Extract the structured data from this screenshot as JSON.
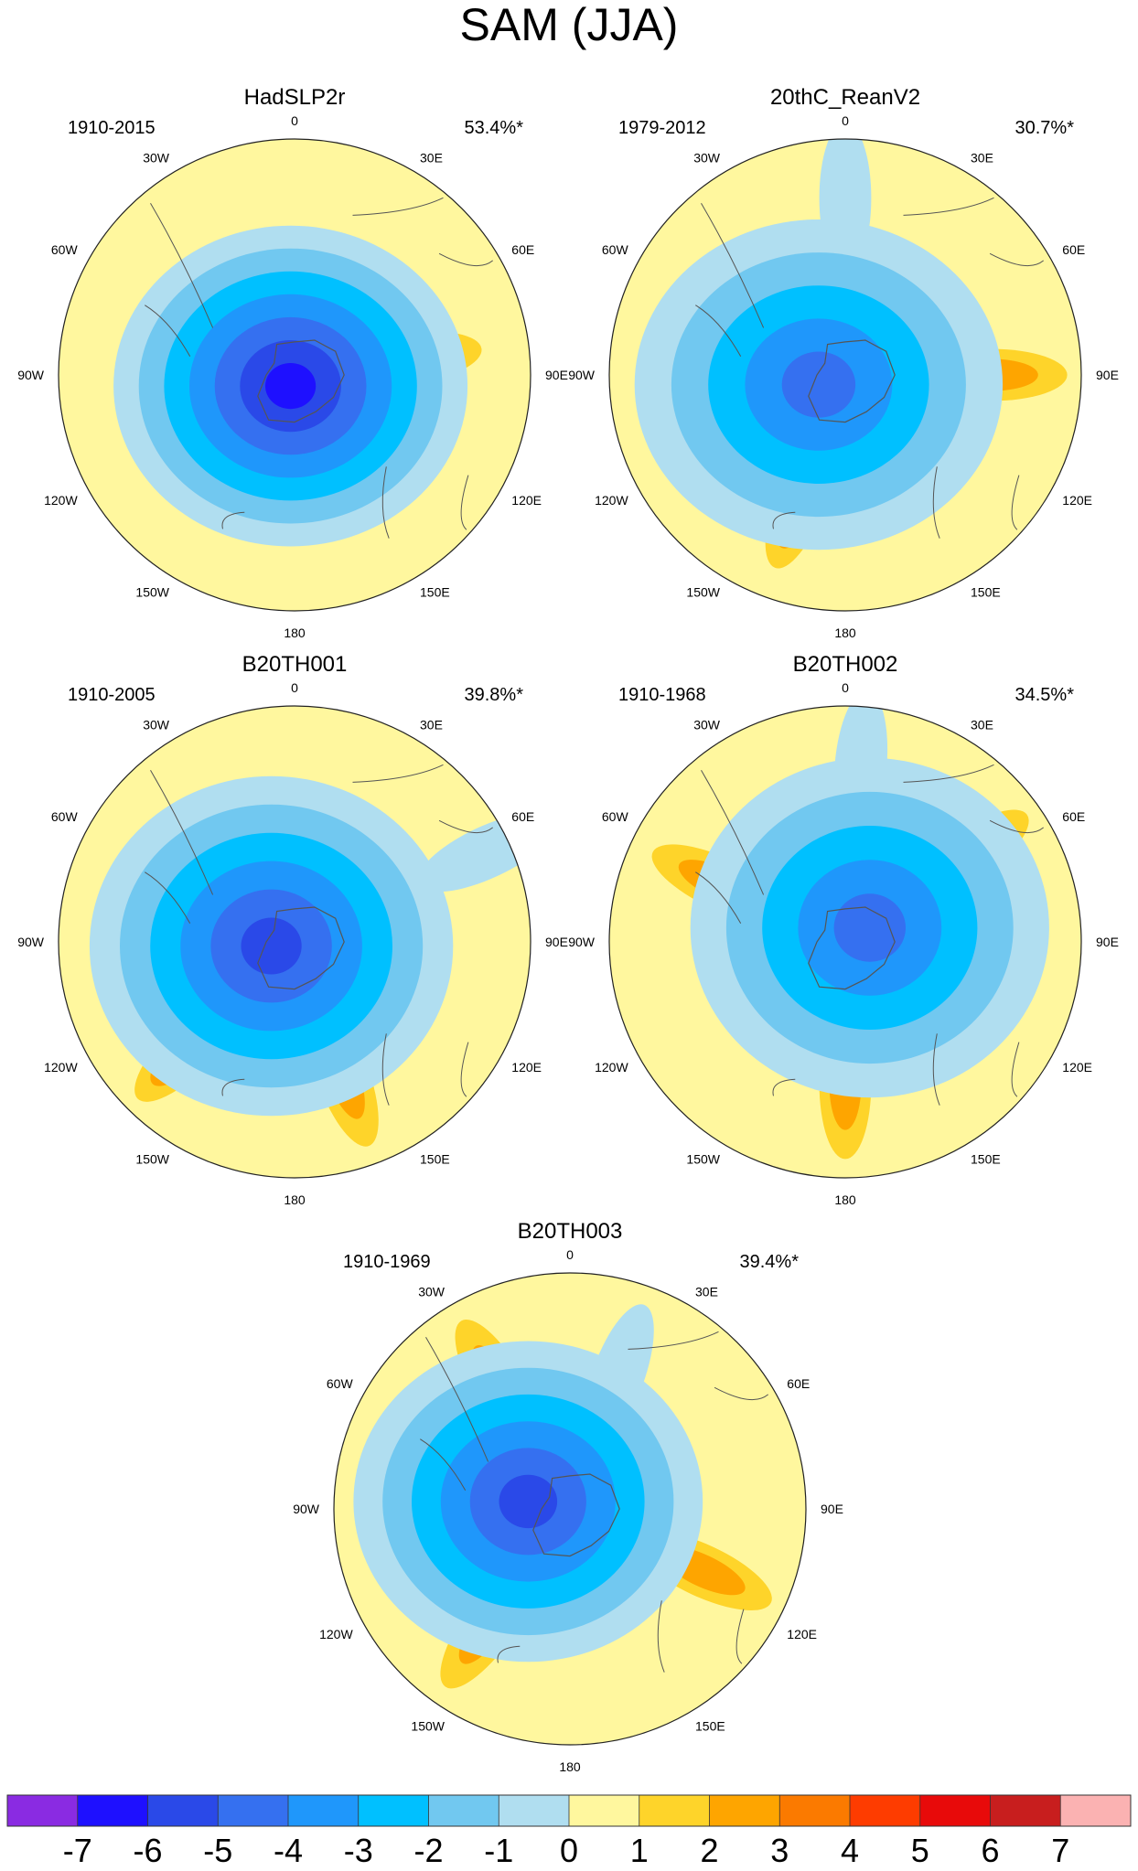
{
  "chart_data": {
    "type": "heatmap",
    "title": "SAM (JJA)",
    "projection": "south-polar-stereographic",
    "longitude_labels": {
      "lon_0": "0",
      "lon_30e": "30E",
      "lon_60e": "60E",
      "lon_90e": "90E",
      "lon_120e": "120E",
      "lon_150e": "150E",
      "lon_180": "180",
      "lon_150w": "150W",
      "lon_120w": "120W",
      "lon_90w": "90W",
      "lon_60w": "60W",
      "lon_30w": "30W"
    },
    "panels": [
      {
        "name": "HadSLP2r",
        "years": "1910-2015",
        "variance": "53.4%*",
        "min_value": -6,
        "min_bearing_deg": 200,
        "min_radius_frac": 0.05,
        "spread": [
          0.25,
          0.2
        ],
        "features": [
          {
            "value": -2,
            "bearing": 10,
            "r": 0.3
          },
          {
            "value": 2,
            "bearing": 82,
            "r": 0.48
          }
        ]
      },
      {
        "name": "20thC_ReanV2",
        "years": "1979-2012",
        "variance": "30.7%*",
        "min_value": -4,
        "min_bearing_deg": 250,
        "min_radius_frac": 0.12,
        "spread": [
          0.28,
          0.22
        ],
        "features": [
          {
            "value": 3,
            "bearing": 200,
            "r": 0.55
          },
          {
            "value": 2,
            "bearing": 90,
            "r": 0.62
          },
          {
            "value": -1,
            "bearing": 0,
            "r": 0.75
          }
        ]
      },
      {
        "name": "B20TH001",
        "years": "1910-2005",
        "variance": "39.8%*",
        "min_value": -5,
        "min_bearing_deg": 260,
        "min_radius_frac": 0.1,
        "spread": [
          0.27,
          0.24
        ],
        "features": [
          {
            "value": 3,
            "bearing": 225,
            "r": 0.62
          },
          {
            "value": 2,
            "bearing": 160,
            "r": 0.6
          },
          {
            "value": -1,
            "bearing": 65,
            "r": 0.9
          }
        ]
      },
      {
        "name": "B20TH002",
        "years": "1910-1968",
        "variance": "34.5%*",
        "min_value": -4,
        "min_bearing_deg": 60,
        "min_radius_frac": 0.12,
        "spread": [
          0.26,
          0.24
        ],
        "features": [
          {
            "value": 2,
            "bearing": 180,
            "r": 0.6
          },
          {
            "value": 2,
            "bearing": 55,
            "r": 0.62
          },
          {
            "value": 2,
            "bearing": 295,
            "r": 0.58
          },
          {
            "value": -1,
            "bearing": 5,
            "r": 0.75
          }
        ]
      },
      {
        "name": "B20TH003",
        "years": "1910-1969",
        "variance": "39.4%*",
        "min_value": -5,
        "min_bearing_deg": 280,
        "min_radius_frac": 0.18,
        "spread": [
          0.24,
          0.2
        ],
        "features": [
          {
            "value": 2,
            "bearing": 215,
            "r": 0.6
          },
          {
            "value": 2,
            "bearing": 115,
            "r": 0.62
          },
          {
            "value": 2,
            "bearing": 330,
            "r": 0.6
          },
          {
            "value": -1,
            "bearing": 20,
            "r": 0.6
          }
        ]
      }
    ],
    "colorbar": {
      "ticks": [
        "-7",
        "-6",
        "-5",
        "-4",
        "-3",
        "-2",
        "-1",
        "0",
        "1",
        "2",
        "3",
        "4",
        "5",
        "6",
        "7"
      ],
      "colors": [
        "#8a2be2",
        "#1e10ff",
        "#2a49e8",
        "#3570f0",
        "#1f97fb",
        "#00c0ff",
        "#71c8f0",
        "#b0def0",
        "#fff79e",
        "#fed42a",
        "#fea500",
        "#fb7a00",
        "#fe3c00",
        "#e80a0a",
        "#c81e1e",
        "#fbb2b2"
      ]
    }
  }
}
